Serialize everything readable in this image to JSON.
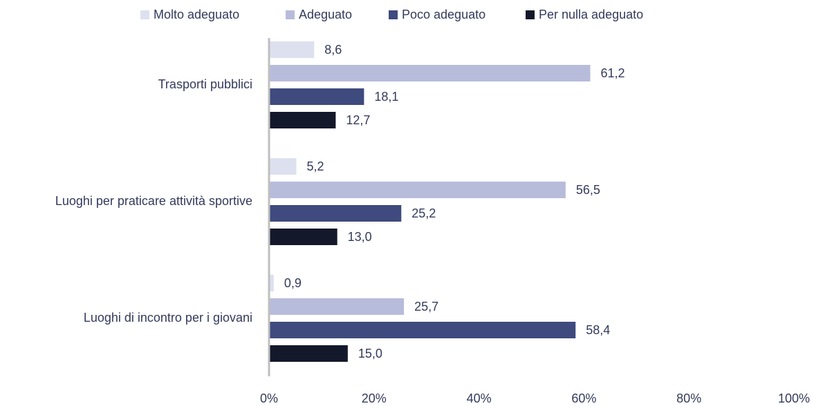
{
  "chart_data": {
    "type": "hbar",
    "categories": [
      "Trasporti pubblici",
      "Luoghi per praticare attività sportive",
      "Luoghi di incontro per i giovani"
    ],
    "series": [
      {
        "name": "Molto adeguato",
        "color": "#dde0ef",
        "values": [
          8.6,
          5.2,
          0.9
        ],
        "value_labels": [
          "8,6",
          "5,2",
          "0,9"
        ]
      },
      {
        "name": "Adeguato",
        "color": "#b8bcdb",
        "values": [
          61.2,
          56.5,
          25.7
        ],
        "value_labels": [
          "61,2",
          "56,5",
          "25,7"
        ]
      },
      {
        "name": "Poco adeguato",
        "color": "#3f4a7e",
        "values": [
          18.1,
          25.2,
          58.4
        ],
        "value_labels": [
          "18,1",
          "25,2",
          "58,4"
        ]
      },
      {
        "name": "Per nulla adeguato",
        "color": "#14182b",
        "values": [
          12.7,
          13.0,
          15.0
        ],
        "value_labels": [
          "12,7",
          "13,0",
          "15,0"
        ]
      }
    ],
    "xlim": [
      0,
      100
    ],
    "xticks": [
      {
        "value": 0,
        "label": "0%"
      },
      {
        "value": 20,
        "label": "20%"
      },
      {
        "value": 40,
        "label": "40%"
      },
      {
        "value": 60,
        "label": "60%"
      },
      {
        "value": 80,
        "label": "80%"
      },
      {
        "value": 100,
        "label": "100%"
      }
    ],
    "legend": "top"
  }
}
